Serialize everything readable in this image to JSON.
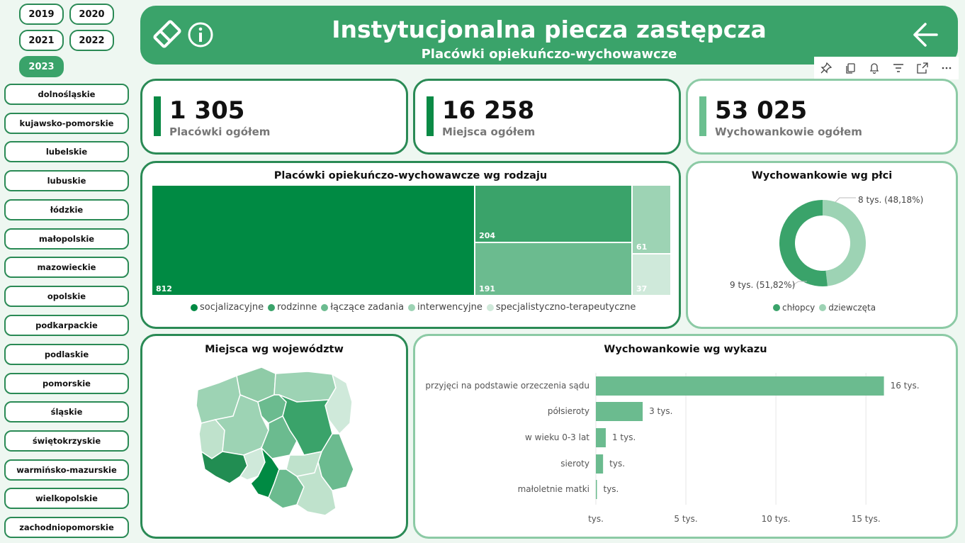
{
  "years": [
    "2019",
    "2020",
    "2021",
    "2022",
    "2023"
  ],
  "active_year": "2023",
  "regions": [
    "dolnośląskie",
    "kujawsko-pomorskie",
    "lubelskie",
    "lubuskie",
    "łódzkie",
    "małopolskie",
    "mazowieckie",
    "opolskie",
    "podkarpackie",
    "podlaskie",
    "pomorskie",
    "śląskie",
    "świętokrzyskie",
    "warmińsko-mazurskie",
    "wielkopolskie",
    "zachodniopomorskie"
  ],
  "header": {
    "title": "Instytucjonalna piecza zastępcza",
    "subtitle": "Placówki opiekuńczo-wychowawcze"
  },
  "toolbar": [
    "pin-icon",
    "copy-icon",
    "bell-icon",
    "filter-icon",
    "focus-mode-icon",
    "more-options-icon"
  ],
  "kpis": [
    {
      "value": "1 305",
      "label": "Placówki ogółem",
      "color": "#0a8a45"
    },
    {
      "value": "16 258",
      "label": "Miejsca ogółem",
      "color": "#0a8a45"
    },
    {
      "value": "53 025",
      "label": "Wychowankowie ogółem",
      "color": "#6abf8f"
    }
  ],
  "colors": {
    "dark": "#008a43",
    "mid": "#3aa36a",
    "light": "#6bbb8f",
    "lighter": "#9dd3b4",
    "lightest": "#cfe9da"
  },
  "treemap": {
    "title": "Placówki opiekuńczo-wychowawcze wg rodzaju",
    "legend": [
      "socjalizacyjne",
      "rodzinne",
      "łączące zadania",
      "interwencyjne",
      "specjalistyczno-terapeutyczne"
    ],
    "values": {
      "socjalizacyjne": 812,
      "rodzinne": 204,
      "łączące zadania": 191,
      "interwencyjne": 61,
      "specjalistyczno-terapeutyczne": 37
    },
    "labels": [
      "812",
      "204",
      "191",
      "61",
      "37"
    ]
  },
  "donut": {
    "title": "Wychowankowie wg płci",
    "legend": [
      "chłopcy",
      "dziewczęta"
    ],
    "values": {
      "chłopcy": 51.82,
      "dziewczęta": 48.18
    },
    "label_girls": "8 tys. (48,18%)",
    "label_boys": "9 tys. (51,82%)"
  },
  "map": {
    "title": "Miejsca wg województw"
  },
  "bars": {
    "title": "Wychowankowie wg wykazu",
    "categories": [
      "przyjęci na podstawie orzeczenia sądu",
      "półsieroty",
      "w wieku 0-3 lat",
      "sieroty",
      "małoletnie matki"
    ],
    "values": [
      16,
      2.6,
      0.55,
      0.4,
      0.05
    ],
    "labels": [
      "16 tys.",
      "3 tys.",
      "1 tys.",
      "tys.",
      "tys."
    ],
    "ticks": [
      "tys.",
      "5 tys.",
      "10 tys.",
      "15 tys."
    ],
    "xmax": 17
  },
  "chart_data": [
    {
      "type": "treemap",
      "title": "Placówki opiekuńczo-wychowawcze wg rodzaju",
      "categories": [
        "socjalizacyjne",
        "rodzinne",
        "łączące zadania",
        "interwencyjne",
        "specjalistyczno-terapeutyczne"
      ],
      "values": [
        812,
        204,
        191,
        61,
        37
      ]
    },
    {
      "type": "pie",
      "title": "Wychowankowie wg płci",
      "categories": [
        "chłopcy",
        "dziewczęta"
      ],
      "values": [
        51.82,
        48.18
      ]
    },
    {
      "type": "bar",
      "title": "Wychowankowie wg wykazu",
      "categories": [
        "przyjęci na podstawie orzeczenia sądu",
        "półsieroty",
        "w wieku 0-3 lat",
        "sieroty",
        "małoletnie matki"
      ],
      "values": [
        16,
        2.6,
        0.55,
        0.4,
        0.05
      ],
      "xlim": [
        0,
        17
      ]
    }
  ]
}
